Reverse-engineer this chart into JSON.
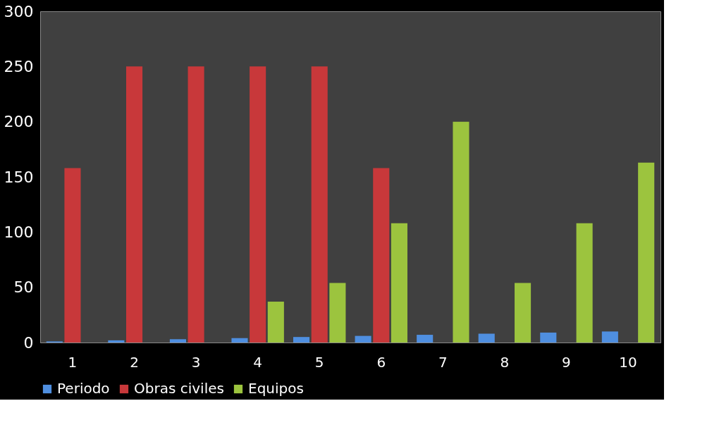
{
  "chart_data": {
    "type": "bar",
    "categories": [
      "1",
      "2",
      "3",
      "4",
      "5",
      "6",
      "7",
      "8",
      "9",
      "10"
    ],
    "series": [
      {
        "name": "Periodo",
        "color": "#4f8fe0",
        "values": [
          1,
          2,
          3,
          4,
          5,
          6,
          7,
          8,
          9,
          10
        ]
      },
      {
        "name": "Obras civiles",
        "color": "#c8383a",
        "values": [
          158,
          250,
          250,
          250,
          250,
          158,
          null,
          null,
          null,
          null
        ]
      },
      {
        "name": "Equipos",
        "color": "#9cc43e",
        "values": [
          null,
          null,
          null,
          37,
          54,
          108,
          200,
          54,
          108,
          163
        ]
      }
    ],
    "ylim": [
      0,
      300
    ],
    "yticks": [
      0,
      50,
      100,
      150,
      200,
      250,
      300
    ],
    "grid": false,
    "legend": "bottom"
  }
}
